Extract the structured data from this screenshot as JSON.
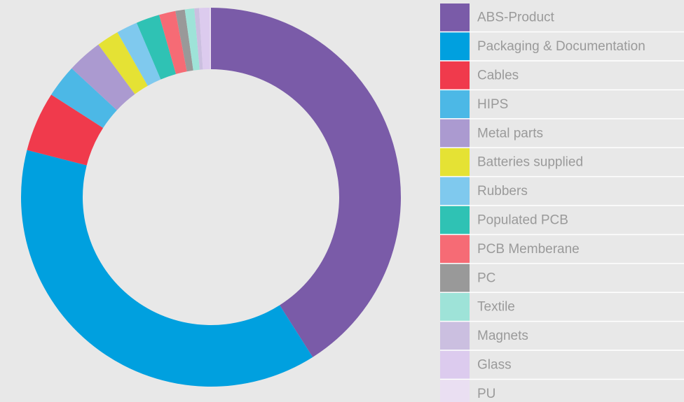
{
  "chart_data": {
    "type": "pie",
    "categories": [
      "ABS-Product",
      "Packaging & Documentation",
      "Cables",
      "HIPS",
      "Metal parts",
      "Batteries supplied",
      "Rubbers",
      "Populated PCB",
      "PCB Memberane",
      "PC",
      "Textile",
      "Magnets",
      "Glass",
      "PU"
    ],
    "values": [
      41.0,
      38.0,
      5.1,
      2.8,
      3.0,
      1.9,
      1.8,
      2.0,
      1.4,
      0.8,
      0.8,
      0.4,
      0.9,
      0.1
    ],
    "colors": [
      "#7a5ba8",
      "#00a0df",
      "#f03a4c",
      "#4cb8e6",
      "#ab9ad0",
      "#e5e234",
      "#7fc9ee",
      "#2fc2b4",
      "#f66b75",
      "#999999",
      "#9ee3d8",
      "#cbbfe0",
      "#dccbee",
      "#eadff2"
    ],
    "legend": "right"
  }
}
